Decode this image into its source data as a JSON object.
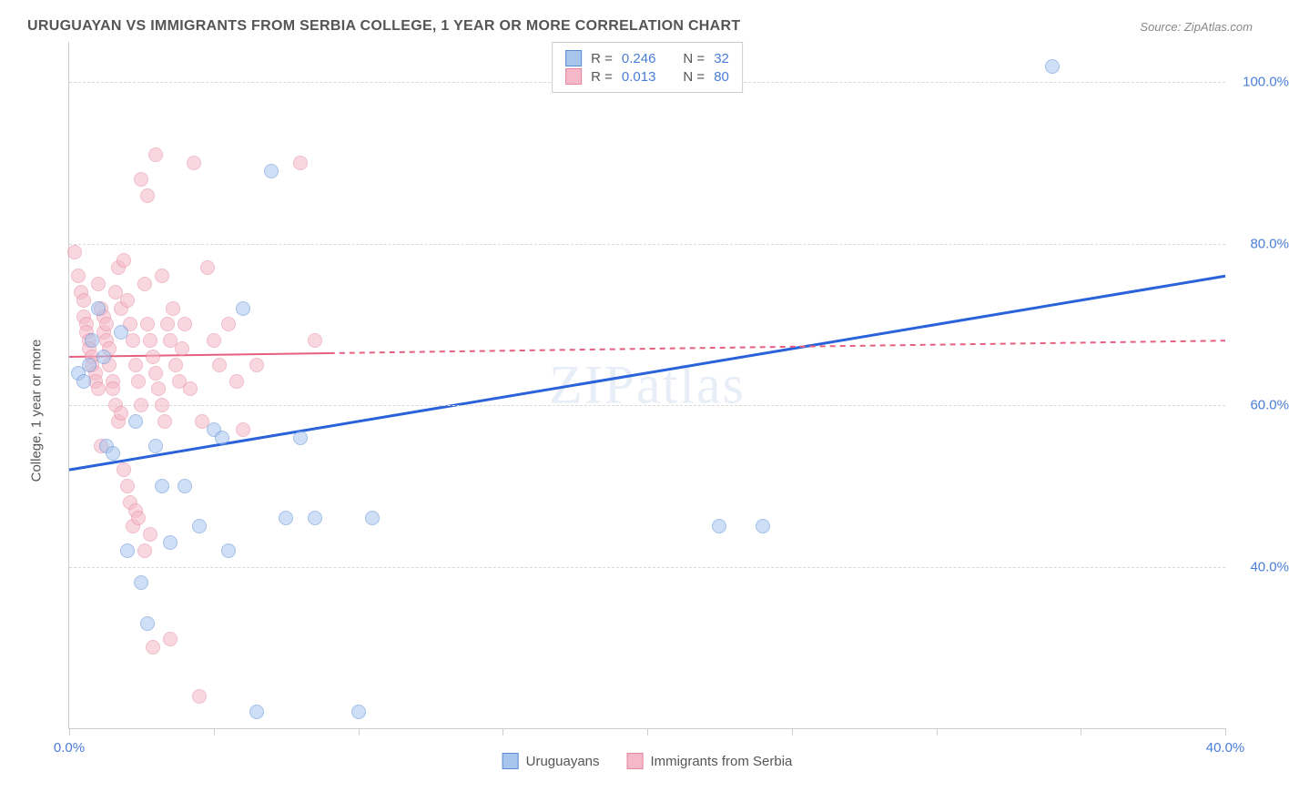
{
  "title": "URUGUAYAN VS IMMIGRANTS FROM SERBIA COLLEGE, 1 YEAR OR MORE CORRELATION CHART",
  "source_label": "Source:",
  "source_value": "ZipAtlas.com",
  "ylabel": "College, 1 year or more",
  "watermark": "ZIPatlas",
  "chart": {
    "type": "scatter",
    "xlim": [
      0,
      40
    ],
    "ylim": [
      20,
      105
    ],
    "y_gridlines": [
      40,
      60,
      80,
      100
    ],
    "y_tick_labels": [
      "40.0%",
      "60.0%",
      "80.0%",
      "100.0%"
    ],
    "x_ticks": [
      0,
      5,
      10,
      15,
      20,
      25,
      30,
      35,
      40
    ],
    "x_tick_labels": [
      "0.0%",
      "",
      "",
      "",
      "",
      "",
      "",
      "",
      "40.0%"
    ],
    "background_color": "#ffffff",
    "grid_color": "#d8d8d8",
    "axis_color": "#cccccc",
    "point_radius": 8,
    "point_opacity": 0.55,
    "series": [
      {
        "id": "uruguayans",
        "label": "Uruguayans",
        "color_fill": "#a8c5ed",
        "color_stroke": "#5b8dd6",
        "R": "0.246",
        "N": "32",
        "trend": {
          "x1": 0,
          "y1": 52,
          "x2": 40,
          "y2": 76,
          "solid_until_x": 40,
          "color": "#2962d9",
          "width": 3
        },
        "points": [
          [
            0.3,
            64
          ],
          [
            0.5,
            63
          ],
          [
            0.7,
            65
          ],
          [
            0.8,
            68
          ],
          [
            1.0,
            72
          ],
          [
            1.2,
            66
          ],
          [
            1.3,
            55
          ],
          [
            1.5,
            54
          ],
          [
            1.8,
            69
          ],
          [
            2.0,
            42
          ],
          [
            2.3,
            58
          ],
          [
            2.5,
            38
          ],
          [
            2.7,
            33
          ],
          [
            3.0,
            55
          ],
          [
            3.2,
            50
          ],
          [
            3.5,
            43
          ],
          [
            4.0,
            50
          ],
          [
            4.5,
            45
          ],
          [
            5.0,
            57
          ],
          [
            5.3,
            56
          ],
          [
            5.5,
            42
          ],
          [
            6.0,
            72
          ],
          [
            6.5,
            22
          ],
          [
            7.0,
            89
          ],
          [
            7.5,
            46
          ],
          [
            8.0,
            56
          ],
          [
            8.5,
            46
          ],
          [
            10.0,
            22
          ],
          [
            10.5,
            46
          ],
          [
            22.5,
            45
          ],
          [
            24.0,
            45
          ],
          [
            34.0,
            102
          ]
        ]
      },
      {
        "id": "serbia",
        "label": "Immigrants from Serbia",
        "color_fill": "#f5b8c8",
        "color_stroke": "#e6869f",
        "R": "0.013",
        "N": "80",
        "trend": {
          "x1": 0,
          "y1": 66,
          "x2": 40,
          "y2": 68,
          "solid_until_x": 9,
          "color": "#e6607f",
          "width": 2
        },
        "points": [
          [
            0.2,
            79
          ],
          [
            0.3,
            76
          ],
          [
            0.4,
            74
          ],
          [
            0.5,
            73
          ],
          [
            0.5,
            71
          ],
          [
            0.6,
            70
          ],
          [
            0.6,
            69
          ],
          [
            0.7,
            68
          ],
          [
            0.7,
            67
          ],
          [
            0.8,
            66
          ],
          [
            0.8,
            65
          ],
          [
            0.9,
            64
          ],
          [
            0.9,
            63
          ],
          [
            1.0,
            62
          ],
          [
            1.0,
            75
          ],
          [
            1.1,
            72
          ],
          [
            1.1,
            55
          ],
          [
            1.2,
            69
          ],
          [
            1.2,
            71
          ],
          [
            1.3,
            68
          ],
          [
            1.3,
            70
          ],
          [
            1.4,
            67
          ],
          [
            1.4,
            65
          ],
          [
            1.5,
            63
          ],
          [
            1.5,
            62
          ],
          [
            1.6,
            74
          ],
          [
            1.6,
            60
          ],
          [
            1.7,
            77
          ],
          [
            1.7,
            58
          ],
          [
            1.8,
            72
          ],
          [
            1.8,
            59
          ],
          [
            1.9,
            78
          ],
          [
            1.9,
            52
          ],
          [
            2.0,
            73
          ],
          [
            2.0,
            50
          ],
          [
            2.1,
            70
          ],
          [
            2.1,
            48
          ],
          [
            2.2,
            68
          ],
          [
            2.2,
            45
          ],
          [
            2.3,
            65
          ],
          [
            2.3,
            47
          ],
          [
            2.4,
            63
          ],
          [
            2.4,
            46
          ],
          [
            2.5,
            60
          ],
          [
            2.5,
            88
          ],
          [
            2.6,
            75
          ],
          [
            2.6,
            42
          ],
          [
            2.7,
            70
          ],
          [
            2.7,
            86
          ],
          [
            2.8,
            68
          ],
          [
            2.8,
            44
          ],
          [
            2.9,
            66
          ],
          [
            2.9,
            30
          ],
          [
            3.0,
            64
          ],
          [
            3.0,
            91
          ],
          [
            3.1,
            62
          ],
          [
            3.2,
            60
          ],
          [
            3.2,
            76
          ],
          [
            3.3,
            58
          ],
          [
            3.4,
            70
          ],
          [
            3.5,
            31
          ],
          [
            3.5,
            68
          ],
          [
            3.6,
            72
          ],
          [
            3.7,
            65
          ],
          [
            3.8,
            63
          ],
          [
            3.9,
            67
          ],
          [
            4.0,
            70
          ],
          [
            4.2,
            62
          ],
          [
            4.3,
            90
          ],
          [
            4.5,
            24
          ],
          [
            4.6,
            58
          ],
          [
            4.8,
            77
          ],
          [
            5.0,
            68
          ],
          [
            5.2,
            65
          ],
          [
            5.5,
            70
          ],
          [
            5.8,
            63
          ],
          [
            6.0,
            57
          ],
          [
            6.5,
            65
          ],
          [
            8.0,
            90
          ],
          [
            8.5,
            68
          ]
        ]
      }
    ]
  },
  "top_legend": {
    "R_label": "R =",
    "N_label": "N ="
  }
}
